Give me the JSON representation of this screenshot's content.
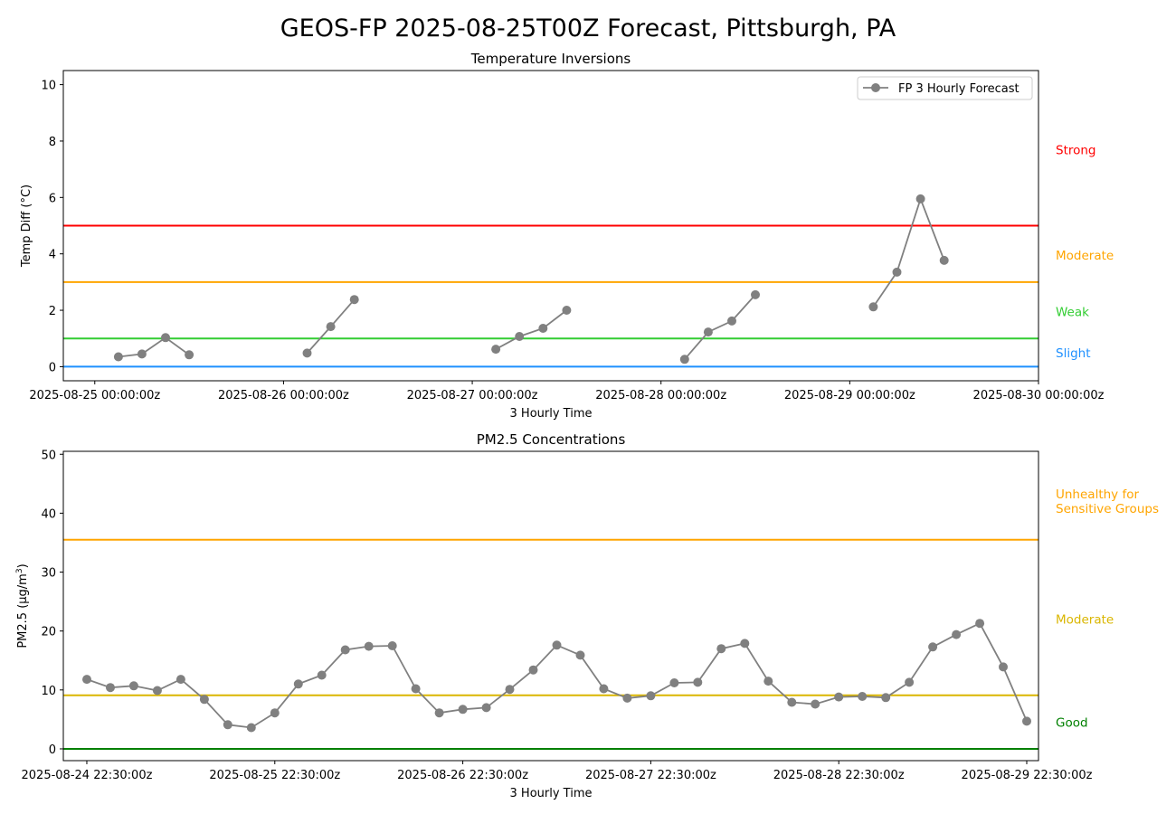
{
  "figure": {
    "title": "GEOS-FP 2025-08-25T00Z Forecast, Pittsburgh, PA"
  },
  "chart_data": [
    {
      "type": "line",
      "title": "Temperature Inversions",
      "xlabel": "3 Hourly Time",
      "ylabel": "Temp Diff (°C)",
      "xlim": [
        "2025-08-24 20:00",
        "2025-08-30 00:00"
      ],
      "ylim": [
        -0.5,
        10.5
      ],
      "yticks": [
        0,
        2,
        4,
        6,
        8,
        10
      ],
      "xticks": [
        {
          "at": "2025-08-25 00:00",
          "label": "2025-08-25 00:00:00z"
        },
        {
          "at": "2025-08-26 00:00",
          "label": "2025-08-26 00:00:00z"
        },
        {
          "at": "2025-08-27 00:00",
          "label": "2025-08-27 00:00:00z"
        },
        {
          "at": "2025-08-28 00:00",
          "label": "2025-08-28 00:00:00z"
        },
        {
          "at": "2025-08-29 00:00",
          "label": "2025-08-29 00:00:00z"
        },
        {
          "at": "2025-08-30 00:00",
          "label": "2025-08-30 00:00:00z"
        }
      ],
      "legend": {
        "position": "upper right"
      },
      "series": [
        {
          "name": "FP 3 Hourly Forecast",
          "color": "#808080",
          "segments": [
            [
              [
                "2025-08-25 03:00",
                0.35
              ],
              [
                "2025-08-25 06:00",
                0.45
              ],
              [
                "2025-08-25 09:00",
                1.03
              ],
              [
                "2025-08-25 12:00",
                0.42
              ]
            ],
            [
              [
                "2025-08-26 03:00",
                0.48
              ],
              [
                "2025-08-26 06:00",
                1.42
              ],
              [
                "2025-08-26 09:00",
                2.38
              ]
            ],
            [
              [
                "2025-08-27 03:00",
                0.62
              ],
              [
                "2025-08-27 06:00",
                1.07
              ],
              [
                "2025-08-27 09:00",
                1.36
              ],
              [
                "2025-08-27 12:00",
                2.0
              ]
            ],
            [
              [
                "2025-08-28 03:00",
                0.26
              ],
              [
                "2025-08-28 06:00",
                1.23
              ],
              [
                "2025-08-28 09:00",
                1.62
              ],
              [
                "2025-08-28 12:00",
                2.55
              ]
            ],
            [
              [
                "2025-08-29 03:00",
                2.12
              ],
              [
                "2025-08-29 06:00",
                3.35
              ],
              [
                "2025-08-29 09:00",
                5.95
              ],
              [
                "2025-08-29 12:00",
                3.77
              ]
            ]
          ]
        }
      ],
      "thresholds": [
        {
          "value": 0,
          "color": "#1e90ff"
        },
        {
          "value": 1,
          "color": "#32cd32"
        },
        {
          "value": 3,
          "color": "#ffa500"
        },
        {
          "value": 5,
          "color": "#ff0000"
        }
      ],
      "category_labels": [
        {
          "label": "Strong",
          "value": 7.7,
          "color": "#ff0000"
        },
        {
          "label": "Moderate",
          "value": 3.95,
          "color": "#ffa500"
        },
        {
          "label": "Weak",
          "value": 1.95,
          "color": "#32cd32"
        },
        {
          "label": "Slight",
          "value": 0.5,
          "color": "#1e90ff"
        }
      ]
    },
    {
      "type": "line",
      "title": "PM2.5 Concentrations",
      "xlabel": "3 Hourly Time",
      "ylabel": "PM2.5 (µg/m",
      "ylabel_sup": "3",
      "ylabel_end": ")",
      "xlim": [
        "2025-08-24 19:30",
        "2025-08-30 00:00"
      ],
      "ylim": [
        -2,
        50.5
      ],
      "yticks": [
        0,
        10,
        20,
        30,
        40,
        50
      ],
      "xticks": [
        {
          "at": "2025-08-24 22:30",
          "label": "2025-08-24 22:30:00z"
        },
        {
          "at": "2025-08-25 22:30",
          "label": "2025-08-25 22:30:00z"
        },
        {
          "at": "2025-08-26 22:30",
          "label": "2025-08-26 22:30:00z"
        },
        {
          "at": "2025-08-27 22:30",
          "label": "2025-08-27 22:30:00z"
        },
        {
          "at": "2025-08-28 22:30",
          "label": "2025-08-28 22:30:00z"
        },
        {
          "at": "2025-08-29 22:30",
          "label": "2025-08-29 22:30:00z"
        }
      ],
      "series": [
        {
          "name": "",
          "color": "#808080",
          "x_start": "2025-08-24 22:30",
          "x_step_hours": 3,
          "values": [
            11.8,
            10.4,
            10.7,
            9.9,
            11.8,
            8.4,
            4.1,
            3.6,
            6.1,
            11.0,
            12.5,
            16.8,
            17.4,
            17.5,
            10.2,
            6.1,
            6.7,
            7.0,
            10.1,
            13.4,
            17.6,
            15.9,
            10.2,
            8.6,
            9.0,
            11.2,
            11.3,
            17.0,
            17.9,
            11.5,
            7.9,
            7.6,
            8.8,
            8.9,
            8.7,
            11.3,
            17.3,
            19.4,
            21.3,
            13.9,
            4.7
          ]
        }
      ],
      "thresholds": [
        {
          "value": 0,
          "color": "#008000"
        },
        {
          "value": 9.1,
          "color": "#dab600"
        },
        {
          "value": 35.5,
          "color": "#ffa500"
        }
      ],
      "category_labels": [
        {
          "label": "Unhealthy for\nSensitive Groups",
          "value": 43.3,
          "color": "#ffa500"
        },
        {
          "label": "Moderate",
          "value": 22.0,
          "color": "#dab600"
        },
        {
          "label": "Good",
          "value": 4.5,
          "color": "#008000"
        }
      ]
    }
  ]
}
